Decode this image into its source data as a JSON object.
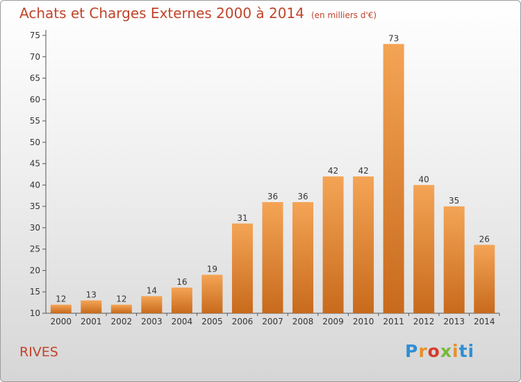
{
  "title": "Achats et Charges Externes 2000 à 2014",
  "unit": "(en milliers d'€)",
  "place": "RIVES",
  "logo": {
    "p1": "P",
    "p2": "r",
    "p3": "o",
    "p4": "x",
    "p5": "i",
    "p6": "ti"
  },
  "colors": {
    "title": "#c0442a",
    "bar_top": "#f4a455",
    "bar_bottom": "#c86a1c",
    "axis": "#555555"
  },
  "chart_data": {
    "type": "bar",
    "title": "Achats et Charges Externes 2000 à 2014",
    "subtitle": "(en milliers d'€)",
    "xlabel": "",
    "ylabel": "",
    "categories": [
      "2000",
      "2001",
      "2002",
      "2003",
      "2004",
      "2005",
      "2006",
      "2007",
      "2008",
      "2009",
      "2010",
      "2011",
      "2012",
      "2013",
      "2014"
    ],
    "values": [
      12,
      13,
      12,
      14,
      16,
      19,
      31,
      36,
      36,
      42,
      42,
      73,
      40,
      35,
      26
    ],
    "ylim": [
      10,
      75
    ],
    "yticks": [
      10,
      15,
      20,
      25,
      30,
      35,
      40,
      45,
      50,
      55,
      60,
      65,
      70,
      75
    ],
    "grid": false
  }
}
